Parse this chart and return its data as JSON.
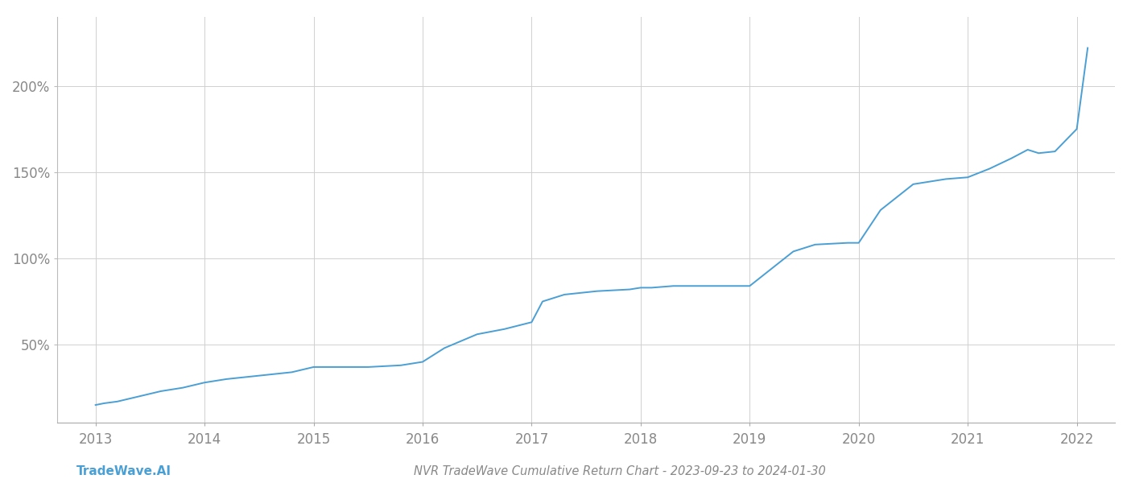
{
  "title": "NVR TradeWave Cumulative Return Chart - 2023-09-23 to 2024-01-30",
  "watermark": "TradeWave.AI",
  "line_color": "#4a9fd4",
  "background_color": "#ffffff",
  "grid_color": "#d0d0d0",
  "x_years": [
    2013,
    2014,
    2015,
    2016,
    2017,
    2018,
    2019,
    2020,
    2021,
    2022
  ],
  "yticks": [
    50,
    100,
    150,
    200
  ],
  "ytick_labels": [
    "50%",
    "100%",
    "150%",
    "200%"
  ],
  "ylim": [
    5,
    240
  ],
  "xlim": [
    2012.65,
    2022.35
  ],
  "title_fontsize": 10.5,
  "watermark_fontsize": 11,
  "tick_label_color": "#888888",
  "tick_label_fontsize": 12,
  "x_data": [
    2013.0,
    2013.08,
    2013.2,
    2013.4,
    2013.6,
    2013.8,
    2014.0,
    2014.2,
    2014.5,
    2014.8,
    2015.0,
    2015.2,
    2015.5,
    2015.8,
    2016.0,
    2016.2,
    2016.5,
    2016.75,
    2017.0,
    2017.1,
    2017.3,
    2017.6,
    2017.9,
    2018.0,
    2018.1,
    2018.3,
    2018.6,
    2018.9,
    2019.0,
    2019.2,
    2019.4,
    2019.6,
    2019.9,
    2020.0,
    2020.2,
    2020.5,
    2020.8,
    2021.0,
    2021.2,
    2021.4,
    2021.55,
    2021.65,
    2021.8,
    2022.0,
    2022.1
  ],
  "y_data": [
    15,
    16,
    17,
    20,
    23,
    25,
    28,
    30,
    32,
    34,
    37,
    37,
    37,
    38,
    40,
    48,
    56,
    59,
    63,
    75,
    79,
    81,
    82,
    83,
    83,
    84,
    84,
    84,
    84,
    94,
    104,
    108,
    109,
    109,
    128,
    143,
    146,
    147,
    152,
    158,
    163,
    161,
    162,
    175,
    222
  ]
}
